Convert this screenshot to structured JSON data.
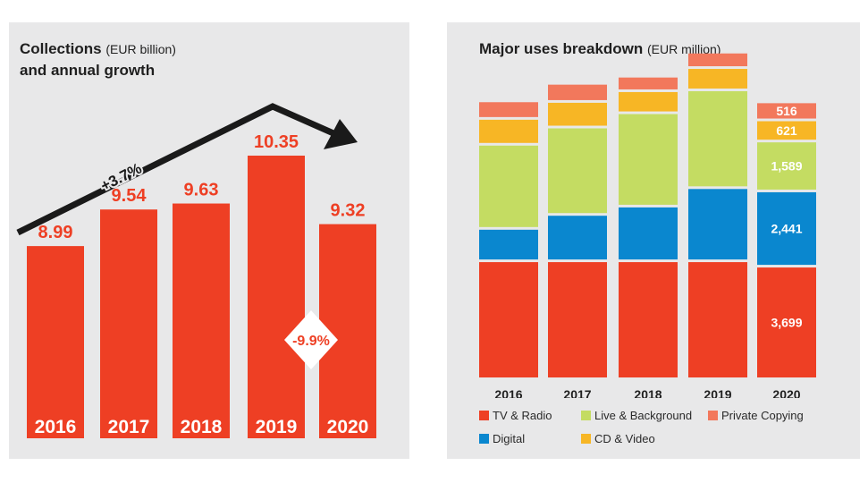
{
  "colors": {
    "red": "#ee3f24",
    "tv_radio": "#ee3f24",
    "digital": "#0a87cf",
    "live_background": "#c4dc62",
    "cd_video": "#f7b625",
    "private_copying": "#f2785c",
    "arrow": "#1a1a1a"
  },
  "left_panel": {
    "title": "Collections",
    "title_unit": "(EUR billion)",
    "title_line2": "and annual growth",
    "growth_label": "+3.7%",
    "drop_label": "-9.9%"
  },
  "right_panel": {
    "title": "Major uses breakdown",
    "title_unit": "(EUR million)"
  },
  "chart_data": [
    {
      "type": "bar",
      "title": "Collections (EUR billion) and annual growth",
      "categories": [
        "2016",
        "2017",
        "2018",
        "2019",
        "2020"
      ],
      "values": [
        8.99,
        9.54,
        9.63,
        10.35,
        9.32
      ],
      "value_labels": [
        "8.99",
        "9.54",
        "9.63",
        "10.35",
        "9.32"
      ],
      "annotations": [
        "+3.7%",
        "-9.9%"
      ]
    },
    {
      "type": "bar",
      "stacked": true,
      "title": "Major uses breakdown (EUR million)",
      "categories": [
        "2016",
        "2017",
        "2018",
        "2019",
        "2020"
      ],
      "series": [
        {
          "name": "TV & Radio",
          "values": [
            3880,
            3880,
            3880,
            3880,
            3699
          ],
          "labels": [
            null,
            null,
            null,
            null,
            "3,699"
          ]
        },
        {
          "name": "Digital",
          "values": [
            1000,
            1470,
            1750,
            2370,
            2441
          ],
          "labels": [
            null,
            null,
            null,
            null,
            "2,441"
          ]
        },
        {
          "name": "Live & Background",
          "values": [
            2740,
            2850,
            3050,
            3200,
            1589
          ],
          "labels": [
            null,
            null,
            null,
            null,
            "1,589"
          ]
        },
        {
          "name": "CD & Video",
          "values": [
            780,
            770,
            650,
            660,
            621
          ],
          "labels": [
            null,
            null,
            null,
            null,
            "621"
          ]
        },
        {
          "name": "Private Copying",
          "values": [
            500,
            520,
            400,
            430,
            516
          ],
          "labels": [
            null,
            null,
            null,
            null,
            "516"
          ]
        }
      ],
      "legend_position": "bottom"
    }
  ]
}
